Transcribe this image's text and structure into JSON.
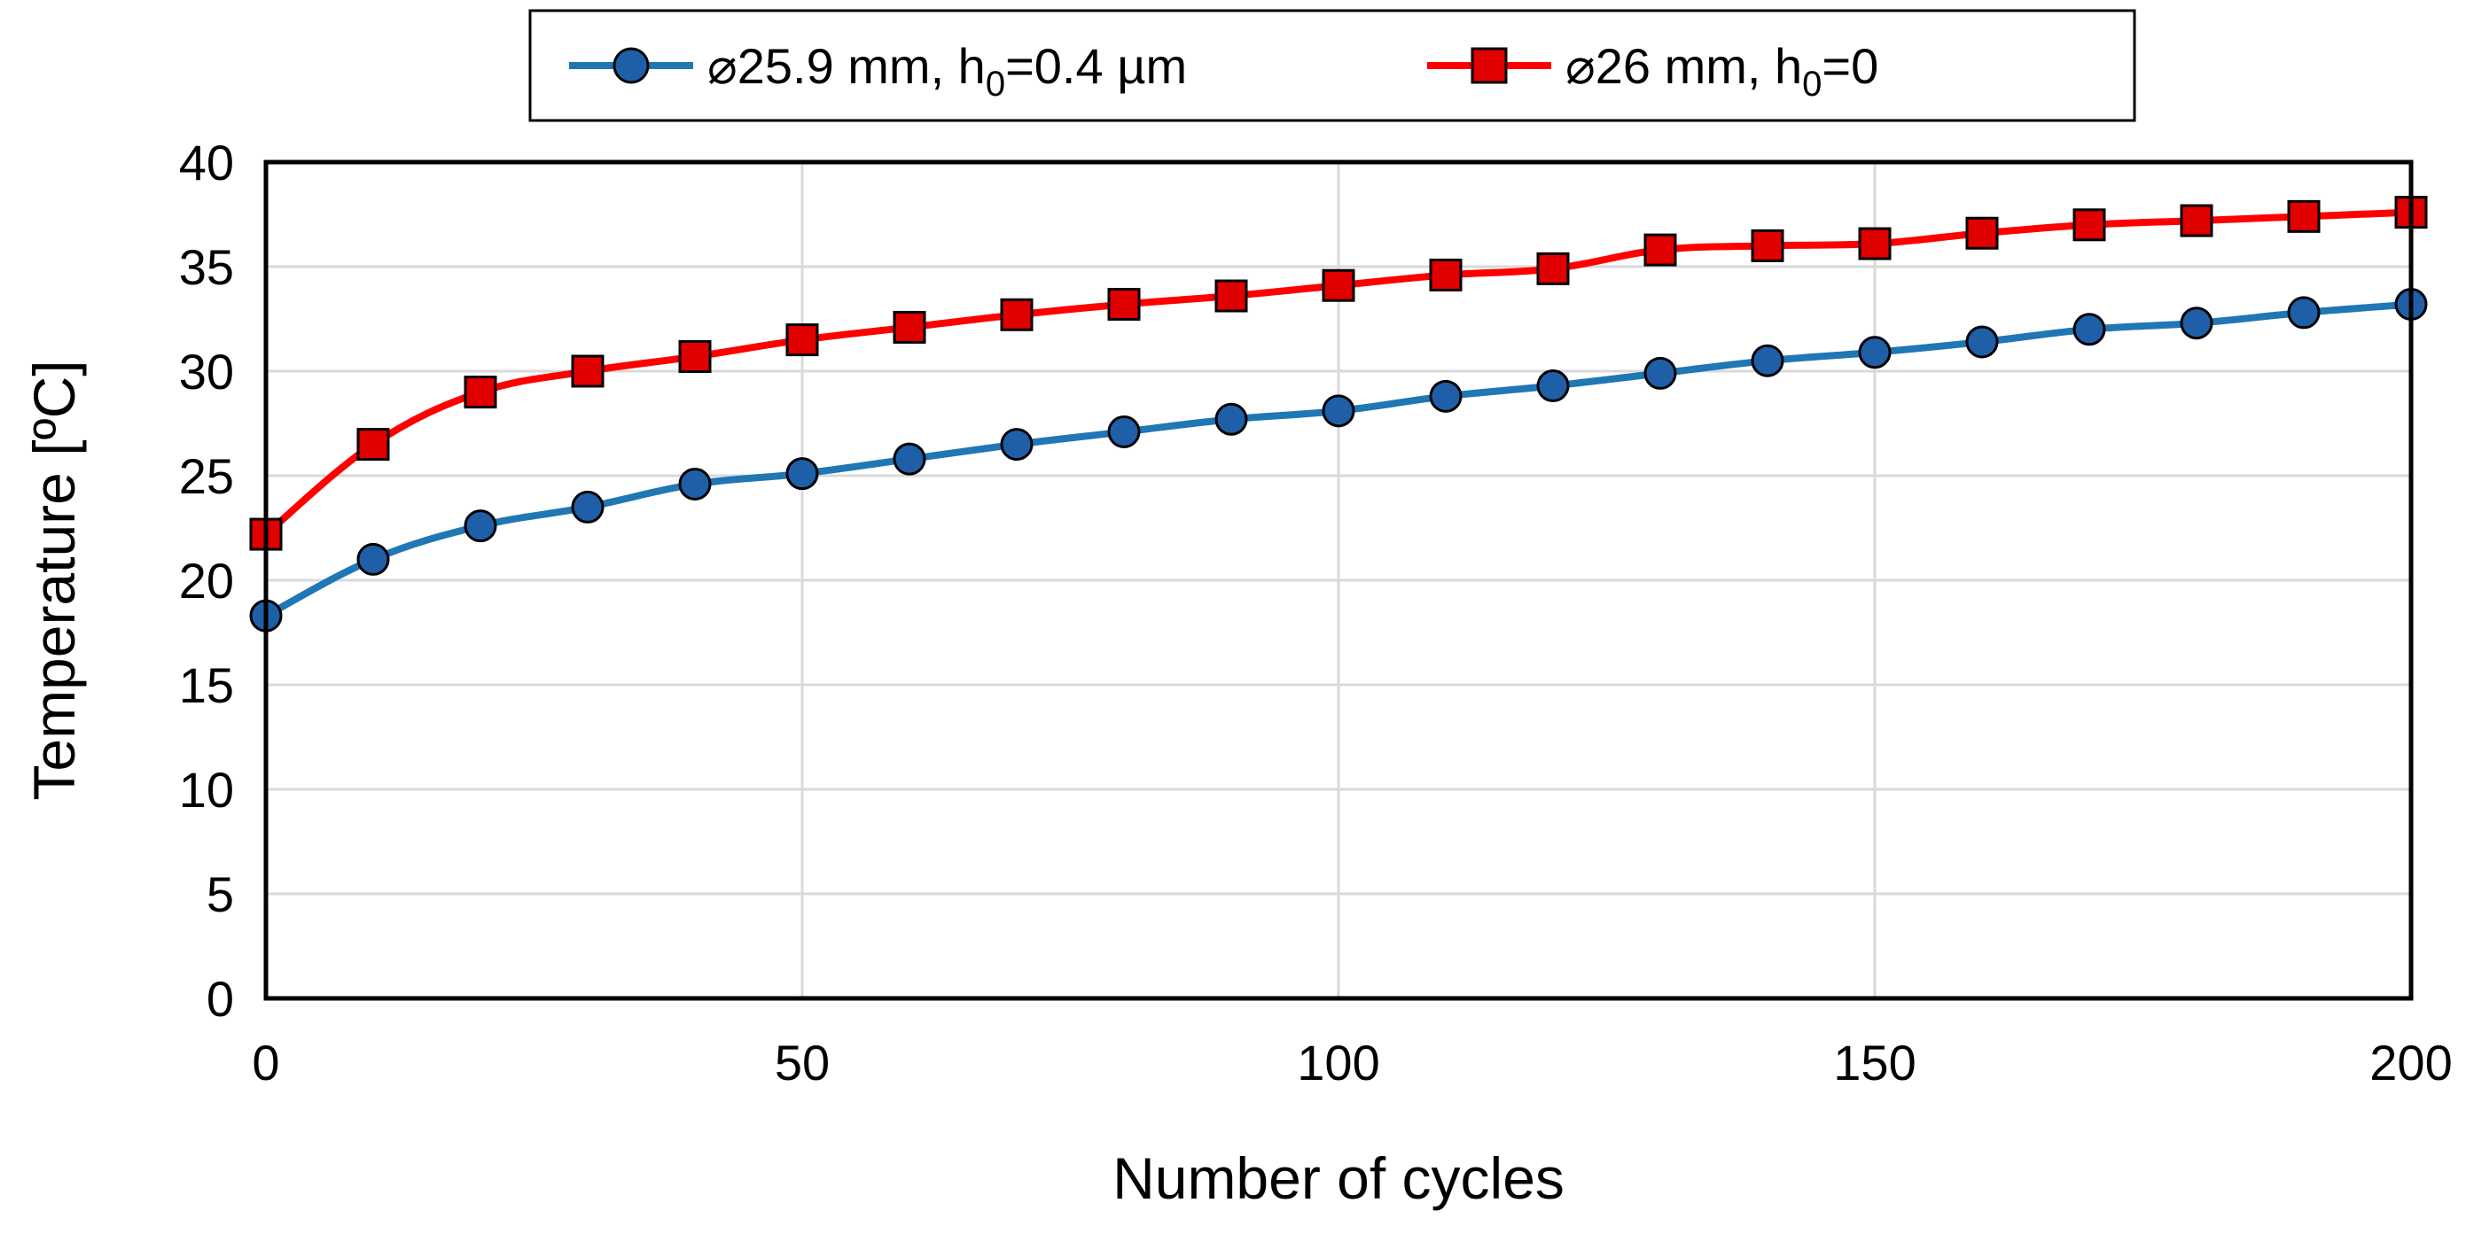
{
  "chart_data": {
    "type": "line",
    "title": "",
    "xlabel": "Number of cycles",
    "ylabel": "Temperature [ºC]",
    "xlim": [
      0,
      200
    ],
    "ylim": [
      0,
      40
    ],
    "x_ticks": [
      0,
      50,
      100,
      150,
      200
    ],
    "y_ticks": [
      0,
      5,
      10,
      15,
      20,
      25,
      30,
      35,
      40
    ],
    "grid": true,
    "legend_position": "top",
    "x": [
      0,
      10,
      20,
      30,
      40,
      50,
      60,
      70,
      80,
      90,
      100,
      110,
      120,
      130,
      140,
      150,
      160,
      170,
      180,
      190,
      200
    ],
    "series": [
      {
        "name": "⌀25.9 mm, h0=0.4 µm",
        "legend_main": "⌀25.9 mm, h",
        "legend_sub": "0",
        "legend_tail": "=0.4 µm",
        "color": "#1F77B4",
        "marker_color": "#1F5FA8",
        "marker": "circle",
        "values": [
          18.3,
          21.0,
          22.6,
          23.5,
          24.6,
          25.1,
          25.8,
          26.5,
          27.1,
          27.7,
          28.1,
          28.8,
          29.3,
          29.9,
          30.5,
          30.9,
          31.4,
          32.0,
          32.3,
          32.8,
          33.2
        ]
      },
      {
        "name": "⌀26 mm, h0=0",
        "legend_main": "⌀26 mm, h",
        "legend_sub": "0",
        "legend_tail": "=0",
        "color": "#FF0000",
        "marker_color": "#E00000",
        "marker": "square",
        "values": [
          22.2,
          26.5,
          29.0,
          30.0,
          30.7,
          31.5,
          32.1,
          32.7,
          33.2,
          33.6,
          34.1,
          34.6,
          34.9,
          35.8,
          36.0,
          36.1,
          36.6,
          37.0,
          37.2,
          37.4,
          37.6
        ]
      }
    ]
  }
}
